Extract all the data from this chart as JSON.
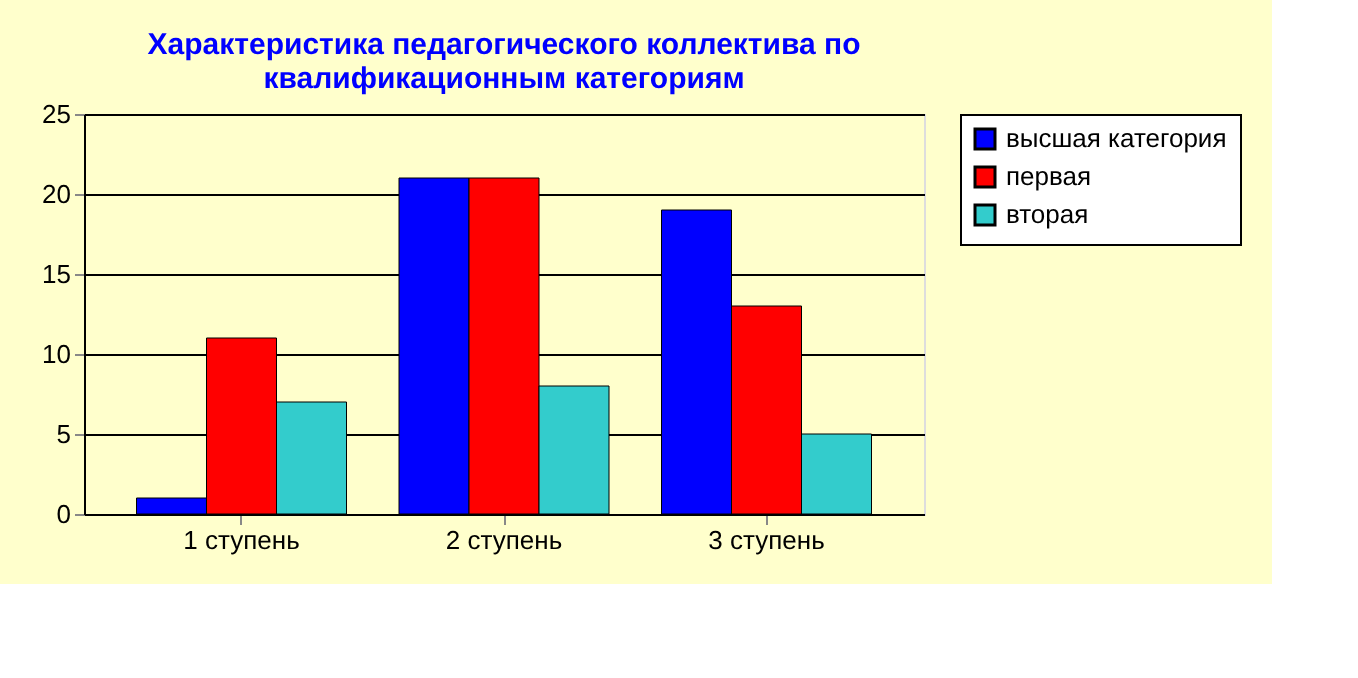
{
  "chart_data": {
    "type": "bar",
    "title": [
      "Характеристика педагогического коллектива по",
      "квалификационным категориям"
    ],
    "categories": [
      "1 ступень",
      "2 ступень",
      "3 ступень"
    ],
    "series": [
      {
        "name": "высшая категория",
        "color": "#0000ff",
        "values": [
          1,
          21,
          19
        ]
      },
      {
        "name": "первая",
        "color": "#ff0000",
        "values": [
          11,
          21,
          13
        ]
      },
      {
        "name": "вторая",
        "color": "#33cccc",
        "values": [
          7,
          8,
          5
        ]
      }
    ],
    "ylim": [
      0,
      25
    ],
    "yticks": [
      0,
      5,
      10,
      15,
      20,
      25
    ],
    "grid": "y",
    "legend": "right"
  }
}
